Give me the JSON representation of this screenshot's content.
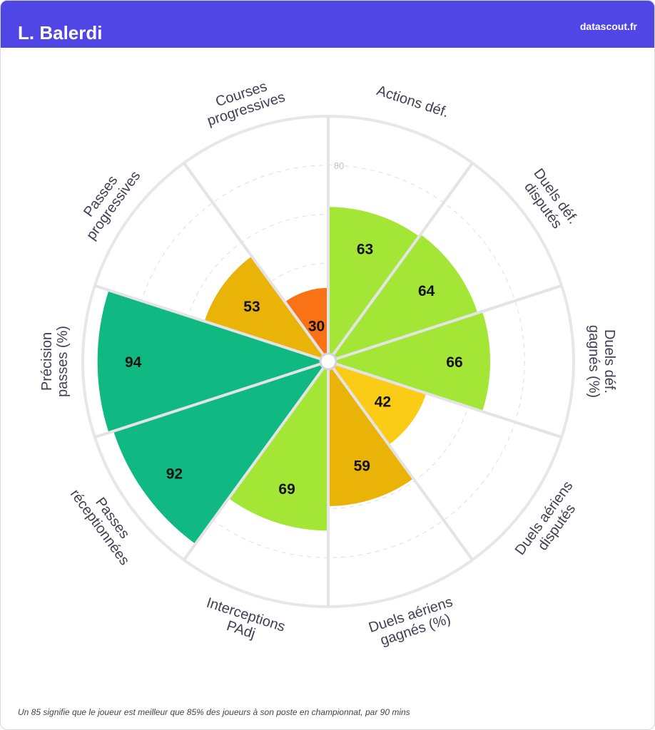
{
  "header": {
    "title": "L. Balerdi",
    "brand": "datascout.fr",
    "color": "#4f46e5"
  },
  "footnote": "Un 85 signifie que le joueur est meilleur que 85% des joueurs à son poste en championnat, par 90 mins",
  "chart_data": {
    "type": "polar-bar",
    "rmax": 100,
    "gridlines": [
      20,
      40,
      60,
      80
    ],
    "gridline_labels": [
      {
        "value": 80,
        "label": "80"
      }
    ],
    "categories": [
      {
        "label": [
          "Actions déf."
        ],
        "value": 63,
        "color": "#a3e635"
      },
      {
        "label": [
          "Duels déf.",
          "disputés"
        ],
        "value": 64,
        "color": "#a3e635"
      },
      {
        "label": [
          "Duels déf.",
          "gagnés (%)"
        ],
        "value": 66,
        "color": "#a3e635"
      },
      {
        "label": [
          "Duels aériens",
          "disputés"
        ],
        "value": 42,
        "color": "#facc15"
      },
      {
        "label": [
          "Duels aériens",
          "gagnés (%)"
        ],
        "value": 59,
        "color": "#eab308"
      },
      {
        "label": [
          "Interceptions",
          "PAdj"
        ],
        "value": 69,
        "color": "#a3e635"
      },
      {
        "label": [
          "Passes",
          "réceptionnées"
        ],
        "value": 92,
        "color": "#10b981"
      },
      {
        "label": [
          "Précision",
          "passes (%)"
        ],
        "value": 94,
        "color": "#10b981"
      },
      {
        "label": [
          "Passes",
          "progressives"
        ],
        "value": 53,
        "color": "#eab308"
      },
      {
        "label": [
          "Courses",
          "progressives"
        ],
        "value": 30,
        "color": "#f97316"
      }
    ]
  }
}
